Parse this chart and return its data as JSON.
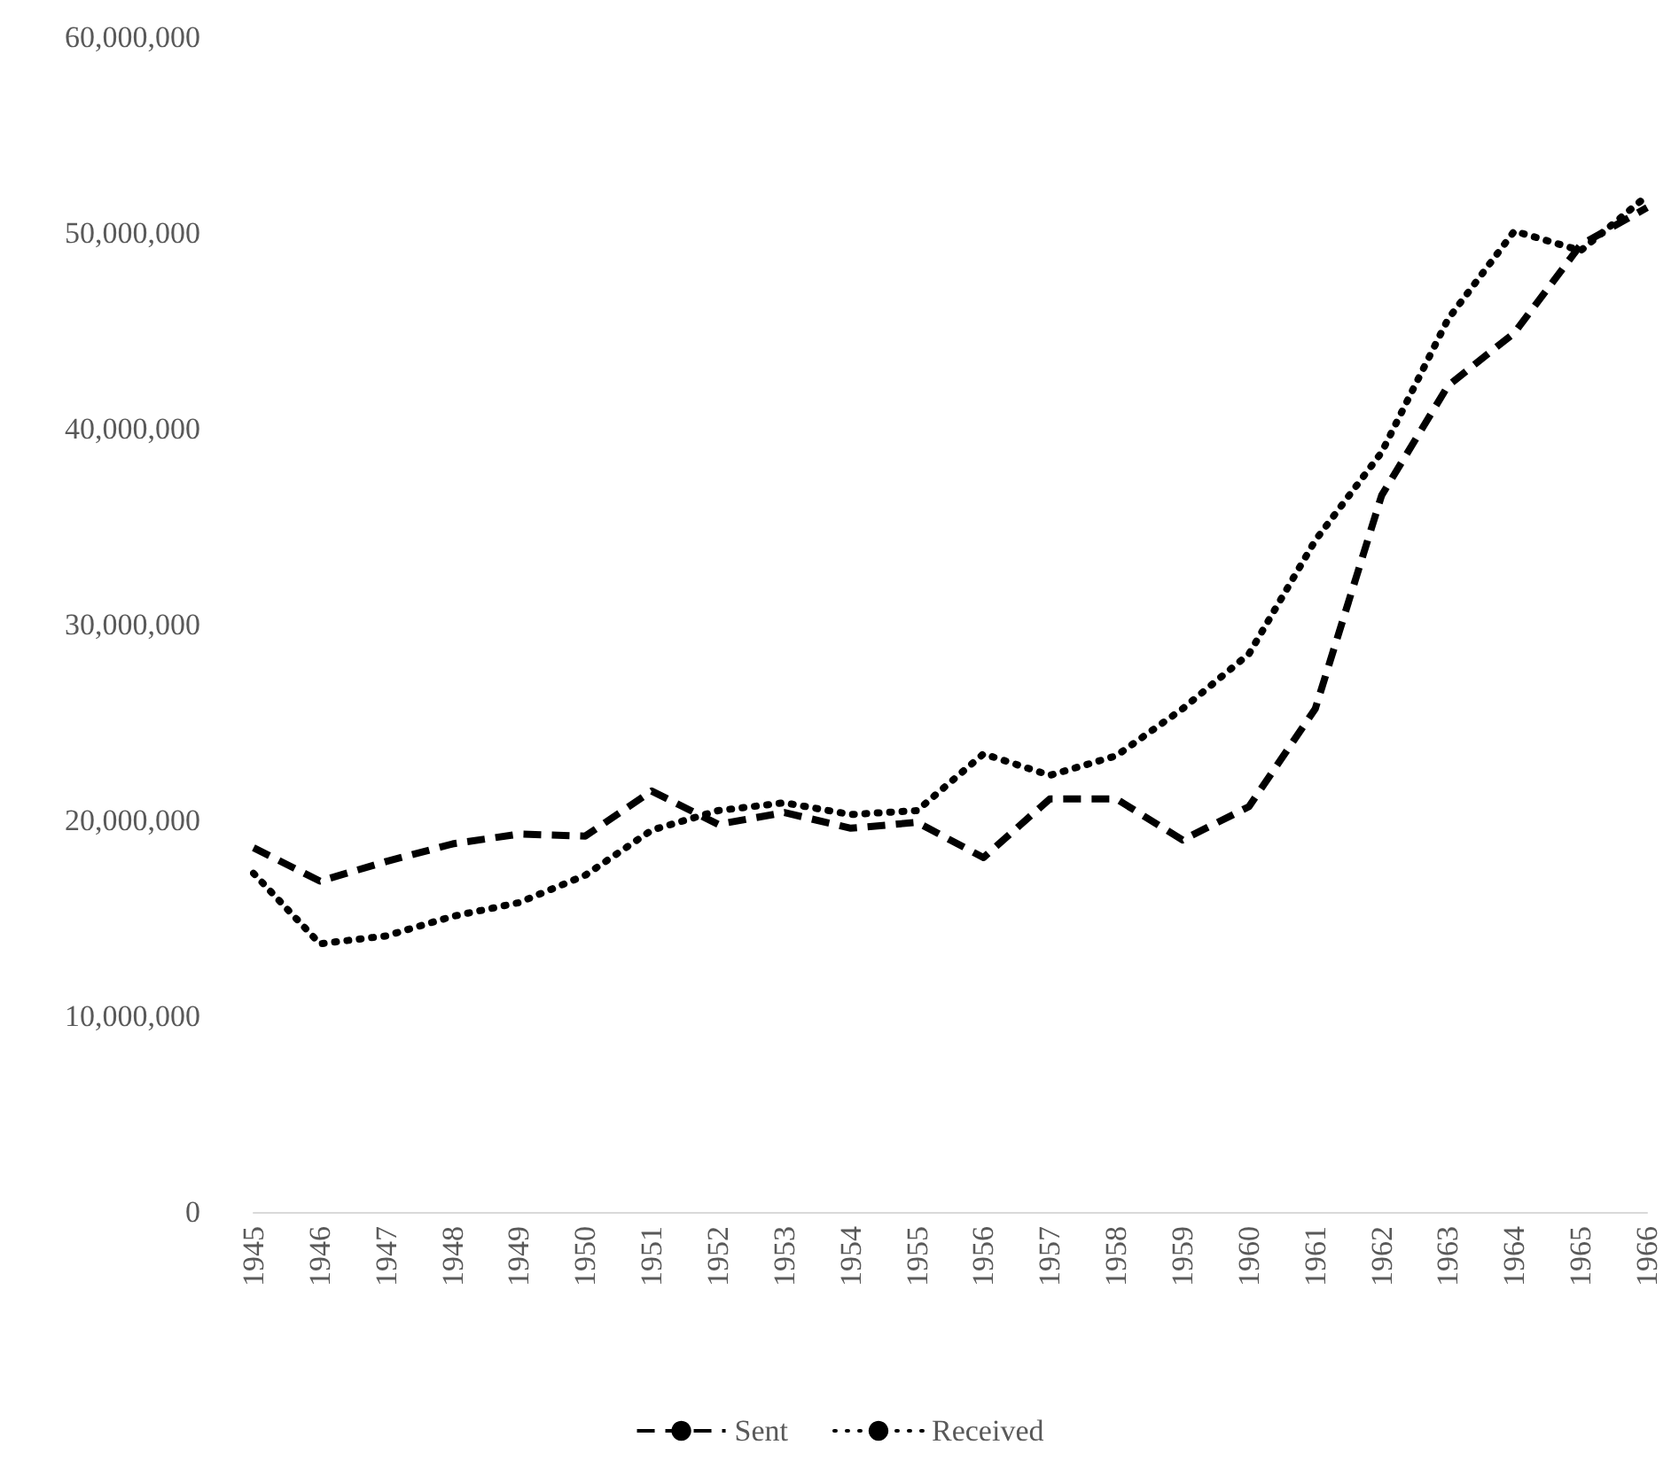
{
  "chart_data": {
    "type": "line",
    "categories": [
      "1945",
      "1946",
      "1947",
      "1948",
      "1949",
      "1950",
      "1951",
      "1952",
      "1953",
      "1954",
      "1955",
      "1956",
      "1957",
      "1958",
      "1959",
      "1960",
      "1961",
      "1962",
      "1963",
      "1964",
      "1965",
      "1966"
    ],
    "series": [
      {
        "name": "Sent",
        "color": "#000000",
        "line_style": "dashed",
        "values": [
          18600000,
          16900000,
          17900000,
          18800000,
          19300000,
          19200000,
          21500000,
          19800000,
          20400000,
          19600000,
          19900000,
          18100000,
          21100000,
          21100000,
          19000000,
          20700000,
          25700000,
          36600000,
          42200000,
          44900000,
          49400000,
          51300000
        ]
      },
      {
        "name": "Received",
        "color": "#000000",
        "line_style": "dotted",
        "values": [
          17300000,
          13700000,
          14100000,
          15100000,
          15800000,
          17200000,
          19500000,
          20500000,
          20900000,
          20300000,
          20500000,
          23400000,
          22300000,
          23300000,
          25700000,
          28500000,
          34300000,
          38800000,
          45600000,
          50100000,
          49100000,
          51900000
        ]
      }
    ],
    "ylim": [
      0,
      60000000
    ],
    "yticks": [
      0,
      {
        "value": 10000000,
        "label": "10,000,000"
      },
      {
        "value": 20000000,
        "label": "20,000,000"
      },
      {
        "value": 30000000,
        "label": "30,000,000"
      },
      {
        "value": 40000000,
        "label": "40,000,000"
      },
      {
        "value": 50000000,
        "label": "50,000,000"
      },
      {
        "value": 60000000,
        "label": "60,000,000"
      }
    ],
    "grid": false,
    "legend": "bottom",
    "marker": "none"
  }
}
